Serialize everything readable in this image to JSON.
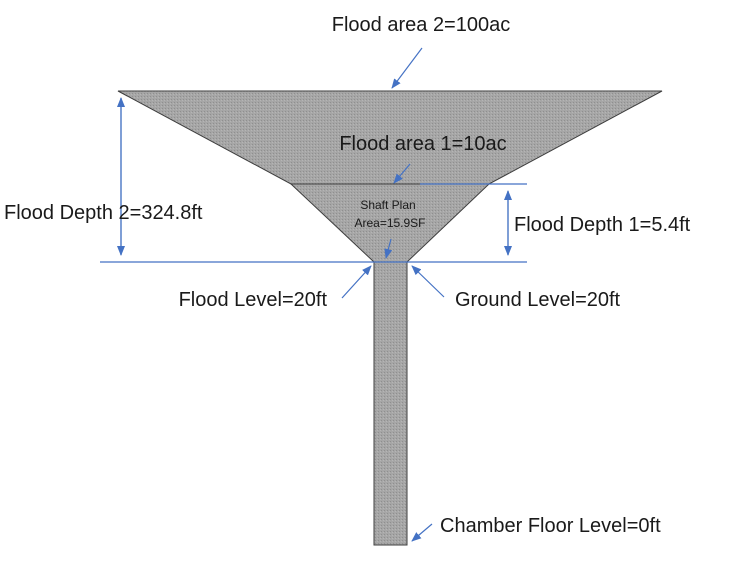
{
  "labels": {
    "flood_area_2": "Flood area 2=100ac",
    "flood_area_1": "Flood area 1=10ac",
    "shaft_plan_line1": "Shaft Plan",
    "shaft_plan_line2": "Area=15.9SF",
    "flood_depth_2": "Flood Depth 2=324.8ft",
    "flood_depth_1": "Flood Depth 1=5.4ft",
    "flood_level": "Flood Level=20ft",
    "ground_level": "Ground Level=20ft",
    "chamber_floor_level": "Chamber Floor Level=0ft"
  },
  "colors": {
    "fill": "#a6a6a6",
    "outline": "#3d3d3d",
    "annotation": "#4472c4",
    "text": "#1a1a1a",
    "background": "#ffffff"
  }
}
